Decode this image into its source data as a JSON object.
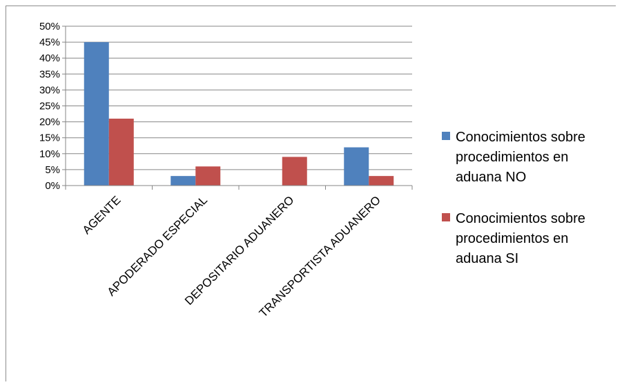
{
  "chart_data": {
    "type": "bar",
    "title": "",
    "xlabel": "",
    "ylabel": "",
    "ylim": [
      0,
      0.5
    ],
    "y_ticks": [
      "0%",
      "5%",
      "10%",
      "15%",
      "20%",
      "25%",
      "30%",
      "35%",
      "40%",
      "45%",
      "50%"
    ],
    "y_tick_values": [
      0,
      0.05,
      0.1,
      0.15,
      0.2,
      0.25,
      0.3,
      0.35,
      0.4,
      0.45,
      0.5
    ],
    "grid": true,
    "legend_position": "right",
    "categories": [
      "AGENTE",
      "APODERADO ESPECIAL",
      "DEPOSITARIO ADUANERO",
      "TRANSPORTISTA ADUANERO"
    ],
    "series": [
      {
        "name": "Conocimientos sobre procedimientos en aduana NO",
        "legend_lines": [
          "Conocimientos sobre",
          "procedimientos en",
          "aduana NO"
        ],
        "color": "#4f81bd",
        "values": [
          0.45,
          0.03,
          0.0,
          0.12
        ]
      },
      {
        "name": "Conocimientos sobre procedimientos en aduana SI",
        "legend_lines": [
          "Conocimientos sobre",
          "procedimientos en",
          "aduana SI"
        ],
        "color": "#c0504d",
        "values": [
          0.21,
          0.06,
          0.09,
          0.03
        ]
      }
    ]
  }
}
